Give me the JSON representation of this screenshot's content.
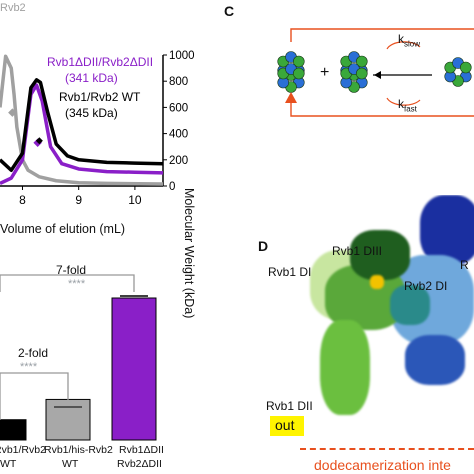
{
  "panels": {
    "C": "C",
    "D": "D"
  },
  "sec_chart": {
    "legend_top_gray": "Rvb2",
    "legend_purple_1": "Rvb1ΔDII/Rvb2ΔDII",
    "legend_purple_2": "(341 kDa)",
    "legend_black_1": "Rvb1/Rvb2 WT",
    "legend_black_2": "(345 kDa)",
    "xlabel": "Volume of elution (mL)",
    "ylabel_right": "Molecular Weight (kDa)",
    "colors": {
      "gray": "#a0a0a0",
      "purple": "#8a1fc8",
      "black": "#000000"
    }
  },
  "chart_data": [
    {
      "type": "line",
      "xlabel": "Volume of elution (mL)",
      "ylabel": "Molecular Weight (kDa)",
      "xlim": [
        7.6,
        10.5
      ],
      "ylim": [
        0,
        1000
      ],
      "x_ticks": [
        8,
        9,
        10
      ],
      "y_ticks": [
        0,
        200,
        400,
        600,
        800,
        1000
      ],
      "series": [
        {
          "name": "Rvb2",
          "color": "#a0a0a0",
          "x": [
            7.6,
            7.7,
            7.8,
            7.85,
            7.9,
            8.0,
            8.1,
            8.3,
            8.6,
            9.0,
            9.5,
            10.5
          ],
          "y": [
            600,
            990,
            900,
            700,
            450,
            200,
            120,
            70,
            40,
            25,
            20,
            15
          ]
        },
        {
          "name": "Rvb1ΔDII/Rvb2ΔDII (341 kDa)",
          "color": "#8a1fc8",
          "x": [
            7.6,
            7.8,
            8.0,
            8.15,
            8.25,
            8.35,
            8.5,
            8.7,
            9.0,
            9.5,
            10.0,
            10.5
          ],
          "y": [
            20,
            60,
            200,
            700,
            770,
            650,
            300,
            170,
            130,
            110,
            105,
            100
          ]
        },
        {
          "name": "Rvb1/Rvb2 WT (345 kDa)",
          "color": "#000000",
          "x": [
            7.6,
            7.8,
            8.0,
            8.15,
            8.25,
            8.32,
            8.45,
            8.6,
            8.8,
            9.0,
            9.5,
            10.0,
            10.5
          ],
          "y": [
            200,
            120,
            250,
            750,
            810,
            790,
            560,
            320,
            230,
            200,
            180,
            175,
            170
          ]
        }
      ]
    },
    {
      "type": "bar",
      "categories": [
        "Rvb1/Rvb2 WT",
        "Rvb1/his-Rvb2 WT",
        "Rvb1ΔDII Rvb2ΔDII"
      ],
      "values": [
        1,
        2,
        7
      ],
      "colors": [
        "#000000",
        "#a8a8a8",
        "#8a1fc8"
      ],
      "annotations": [
        "7-fold",
        "****",
        "2-fold",
        "****"
      ]
    }
  ],
  "bar_chart": {
    "cat_1_line1": "Rvb1/Rvb2",
    "cat_1_line2": "WT",
    "cat_2_line1": "Rvb1/his-Rvb2",
    "cat_2_line2": "WT",
    "cat_3_line1": "Rvb1ΔDII",
    "cat_3_line2": "Rvb2ΔDII",
    "fold_7": "7-fold",
    "fold_2": "2-fold",
    "sig_1": "****",
    "sig_2": "****"
  },
  "scheme": {
    "plus": "+",
    "k_slow_base": "k",
    "k_slow_sub": "slow",
    "k_fast_base": "k",
    "k_fast_sub": "fast",
    "colors": {
      "blue": "#2a6fd6",
      "green": "#3aa83a",
      "arrow": "#e8501e"
    }
  },
  "structure": {
    "rvb1_dIII": "Rvb1 DIII",
    "rvb1_dI": "Rvb1 DI",
    "rvb2_dI": "Rvb2 DI",
    "rvb1_dII": "Rvb1 DII",
    "out_label": "out",
    "cut_label_r": "R",
    "interface_label": "dodecamerization inte"
  }
}
